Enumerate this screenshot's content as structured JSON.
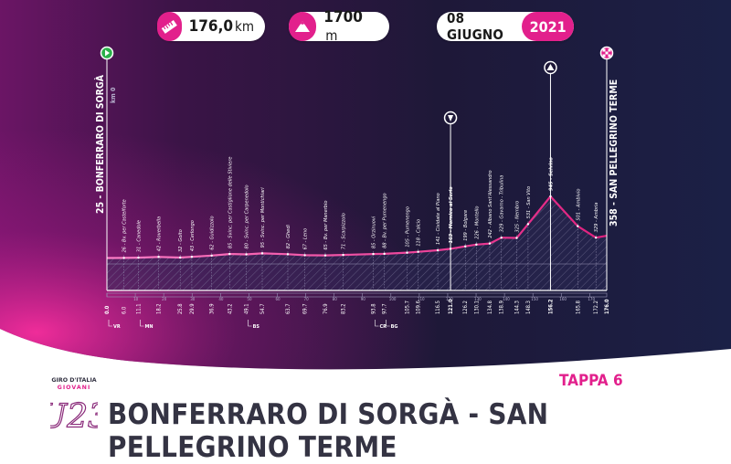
{
  "header": {
    "distance_value": "176,0",
    "distance_unit": "km",
    "climb_value": "1700",
    "climb_unit": "m",
    "date_day": "08 GIUGNO",
    "date_year": "2021"
  },
  "footer": {
    "stage_label": "TAPPA 6",
    "stage_title": "BONFERRARO DI SORGÀ - SAN PELLEGRINO TERME",
    "logo_lines": [
      "GIRO D'ITALIA",
      "GIOVANI",
      "U23"
    ]
  },
  "colors": {
    "accent": "#e2208c",
    "dark_navy": "#1a1733",
    "profile_line": "#e0207e"
  },
  "chart_data": {
    "type": "area",
    "x_unit": "km",
    "y_unit": "m",
    "start": {
      "name": "BONFERRARO DI SORGÀ",
      "altitude": 25,
      "km": 0.0,
      "sublabel": "km 0"
    },
    "finish": {
      "name": "SAN PELLEGRINO TERME",
      "altitude": 358,
      "km": 176.0
    },
    "waypoints": [
      {
        "km": 6.0,
        "alt": 26,
        "name": "Bv. per Castelforte"
      },
      {
        "km": 11.1,
        "alt": 31,
        "name": "Canedole"
      },
      {
        "km": 18.2,
        "alt": 42,
        "name": "Roverbella"
      },
      {
        "km": 25.8,
        "alt": 32,
        "name": "Goito"
      },
      {
        "km": 29.9,
        "alt": 43,
        "name": "Cerlongo"
      },
      {
        "km": 36.9,
        "alt": 62,
        "name": "Guidizzolo"
      },
      {
        "km": 43.2,
        "alt": 85,
        "name": "Svinc. per Castiglione delle Stiviere"
      },
      {
        "km": 49.1,
        "alt": 80,
        "name": "Svinc. per Carpenedolo"
      },
      {
        "km": 54.7,
        "alt": 95,
        "name": "Svinc. per Montichiari"
      },
      {
        "km": 63.7,
        "alt": 82,
        "name": "Ghedi"
      },
      {
        "km": 69.7,
        "alt": 67,
        "name": "Leno"
      },
      {
        "km": 76.9,
        "alt": 65,
        "name": "Bv. per Manerbio"
      },
      {
        "km": 83.2,
        "alt": 71,
        "name": "Scarpizzolo"
      },
      {
        "km": 93.8,
        "alt": 85,
        "name": "Orzinuovi"
      },
      {
        "km": 97.7,
        "alt": 88,
        "name": "Bv. per Pumenengo"
      },
      {
        "km": 105.7,
        "alt": 105,
        "name": "Pumenengo"
      },
      {
        "km": 109.6,
        "alt": 118,
        "name": "Calcio"
      },
      {
        "km": 116.5,
        "alt": 141,
        "name": "Cividate al Piano"
      },
      {
        "km": 121.0,
        "alt": 163,
        "name": "Mornico al Serio",
        "bold": true
      },
      {
        "km": 126.2,
        "alt": 199,
        "name": "Bolgare"
      },
      {
        "km": 130.1,
        "alt": 226,
        "name": "Montello"
      },
      {
        "km": 134.8,
        "alt": 242,
        "name": "Albano Sant'Alessandro"
      },
      {
        "km": 138.9,
        "alt": 329,
        "name": "Gavarno - Tribulina"
      },
      {
        "km": 144.3,
        "alt": 325,
        "name": "Nembro"
      },
      {
        "km": 148.3,
        "alt": 531,
        "name": "San Vito"
      },
      {
        "km": 156.2,
        "alt": 945,
        "name": "Selvino",
        "bold": true
      },
      {
        "km": 165.8,
        "alt": 501,
        "name": "Ambivio"
      },
      {
        "km": 172.2,
        "alt": 329,
        "name": "Ambria"
      }
    ],
    "markers": [
      {
        "km": 121.0,
        "type": "sprint",
        "bold": true
      },
      {
        "km": 156.2,
        "type": "gpm",
        "bold": true
      }
    ],
    "road_refs": [
      {
        "km": 0.0,
        "label": "VR"
      },
      {
        "km": 11.1,
        "label": "MN"
      },
      {
        "km": 49.1,
        "label": "BS"
      },
      {
        "km": 93.8,
        "label": "CR"
      },
      {
        "km": 97.7,
        "label": "BG"
      }
    ]
  }
}
